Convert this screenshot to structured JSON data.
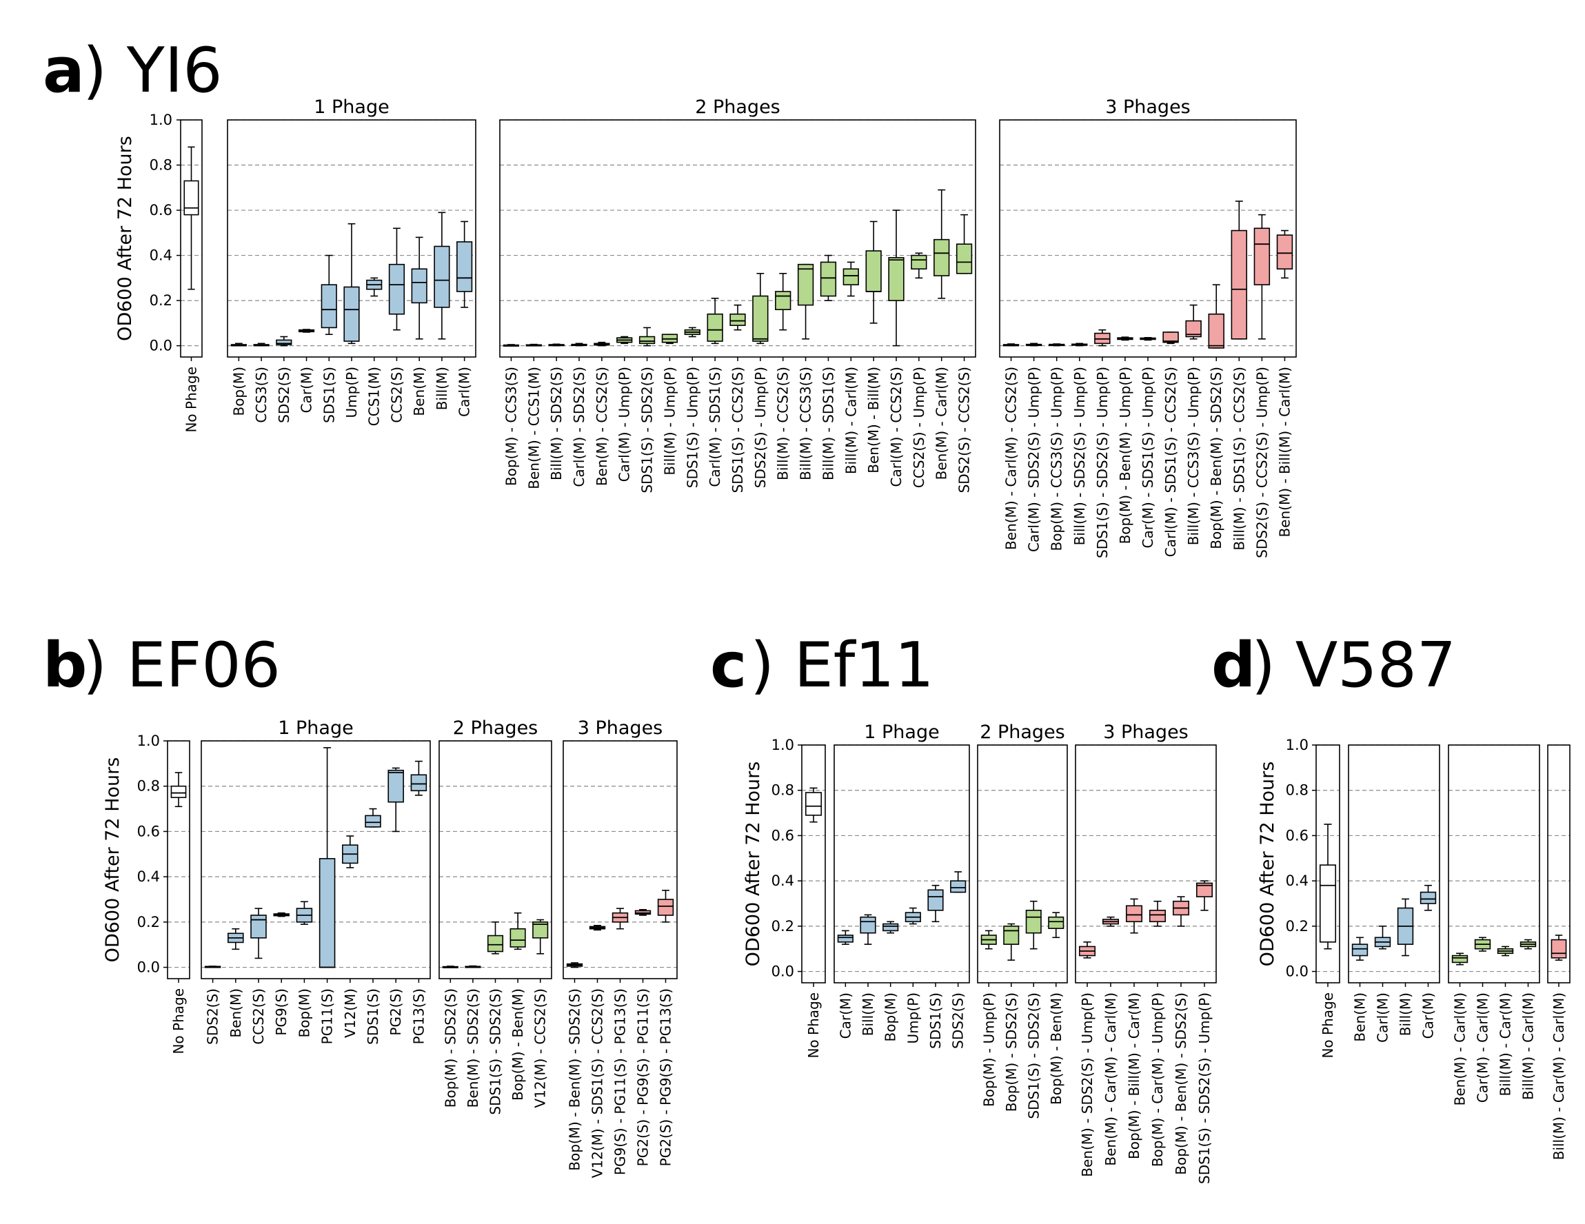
{
  "colors": {
    "none": "#ffffff",
    "1": "#a8c8de",
    "2": "#b4d88e",
    "3": "#f1a4a4"
  },
  "chart_data": [
    {
      "type": "box",
      "panel_letter": "a",
      "panel_name": "YI6",
      "ylabel": "OD600 After 72 Hours",
      "ylim": [
        -0.05,
        1.0
      ],
      "yticks": [
        "0.0",
        "0.2",
        "0.4",
        "0.6",
        "0.8",
        "1.0"
      ],
      "grid": "y-dashed",
      "groups": [
        {
          "title": "",
          "color_key": "none",
          "categories": [
            "No Phage"
          ],
          "boxes": [
            [
              0.25,
              0.58,
              0.61,
              0.73,
              0.88
            ]
          ]
        },
        {
          "title": "1 Phage",
          "color_key": "1",
          "categories": [
            "Bop(M)",
            "CCS3(S)",
            "SDS2(S)",
            "Car(M)",
            "SDS1(S)",
            "Ump(P)",
            "CCS1(M)",
            "CCS2(S)",
            "Ben(M)",
            "Bill(M)",
            "Carl(M)"
          ],
          "boxes": [
            [
              0,
              0,
              0,
              0.005,
              0.01
            ],
            [
              0,
              0,
              0.003,
              0.005,
              0.01
            ],
            [
              0,
              0.005,
              0.01,
              0.025,
              0.04
            ],
            [
              0.06,
              0.062,
              0.066,
              0.07,
              0.072
            ],
            [
              0.05,
              0.08,
              0.16,
              0.27,
              0.4
            ],
            [
              0.01,
              0.02,
              0.16,
              0.26,
              0.54
            ],
            [
              0.22,
              0.25,
              0.27,
              0.29,
              0.3
            ],
            [
              0.07,
              0.14,
              0.27,
              0.36,
              0.52
            ],
            [
              0.03,
              0.19,
              0.28,
              0.34,
              0.48
            ],
            [
              0.03,
              0.17,
              0.29,
              0.44,
              0.59
            ],
            [
              0.17,
              0.24,
              0.3,
              0.46,
              0.55
            ]
          ]
        },
        {
          "title": "2 Phages",
          "color_key": "2",
          "categories": [
            "Bop(M) - CCS3(S)",
            "Ben(M) - CCS1(M)",
            "Bill(M) - SDS2(S)",
            "Carl(M) - SDS2(S)",
            "Ben(M) - CCS2(S)",
            "Carl(M) - Ump(P)",
            "SDS1(S) - SDS2(S)",
            "Bill(M) - Ump(P)",
            "SDS1(S) - Ump(P)",
            "Carl(M) - SDS1(S)",
            "SDS1(S) - CCS2(S)",
            "SDS2(S) - Ump(P)",
            "Bill(M) - CCS2(S)",
            "Bill(M) - CCS3(S)",
            "Bill(M) - SDS1(S)",
            "Bill(M) - Carl(M)",
            "Ben(M) - Bill(M)",
            "Carl(M) - CCS2(S)",
            "CCS2(S) - Ump(P)",
            "Ben(M) - Carl(M)",
            "SDS2(S) - CCS2(S)"
          ],
          "boxes": [
            [
              0,
              0,
              0,
              0.003,
              0.005
            ],
            [
              0,
              0,
              0.002,
              0.004,
              0.006
            ],
            [
              0,
              0.001,
              0.003,
              0.005,
              0.007
            ],
            [
              0,
              0.001,
              0.003,
              0.006,
              0.01
            ],
            [
              0,
              0.003,
              0.006,
              0.01,
              0.015
            ],
            [
              0.01,
              0.015,
              0.025,
              0.035,
              0.04
            ],
            [
              0,
              0.01,
              0.02,
              0.04,
              0.08
            ],
            [
              0.01,
              0.015,
              0.03,
              0.05,
              0.05
            ],
            [
              0.04,
              0.05,
              0.06,
              0.07,
              0.08
            ],
            [
              0.01,
              0.02,
              0.07,
              0.14,
              0.21
            ],
            [
              0.07,
              0.09,
              0.11,
              0.14,
              0.18
            ],
            [
              0.01,
              0.02,
              0.03,
              0.22,
              0.32
            ],
            [
              0.07,
              0.16,
              0.22,
              0.24,
              0.32
            ],
            [
              0.03,
              0.18,
              0.34,
              0.36,
              0.36
            ],
            [
              0.2,
              0.22,
              0.3,
              0.37,
              0.4
            ],
            [
              0.22,
              0.27,
              0.31,
              0.34,
              0.37
            ],
            [
              0.1,
              0.24,
              0.24,
              0.42,
              0.55
            ],
            [
              0,
              0.2,
              0.38,
              0.39,
              0.6
            ],
            [
              0.3,
              0.34,
              0.38,
              0.4,
              0.41
            ],
            [
              0.21,
              0.31,
              0.41,
              0.47,
              0.69
            ],
            [
              0.32,
              0.32,
              0.37,
              0.45,
              0.58
            ]
          ]
        },
        {
          "title": "3 Phages",
          "color_key": "3",
          "categories": [
            "Ben(M) - Carl(M) - CCS2(S)",
            "Carl(M) - SDS2(S) - Ump(P)",
            "Bop(M) - CCS3(S) - Ump(P)",
            "Bill(M) - SDS2(S) - Ump(P)",
            "SDS1(S) - SDS2(S) - Ump(P)",
            "Bop(M) - Ben(M) - Ump(P)",
            "Car(M) - SDS1(S) - Ump(P)",
            "Carl(M) - SDS1(S) - CCS2(S)",
            "Bill(M) - CCS3(S) - Ump(P)",
            "Bop(M) - Ben(M) - SDS2(S)",
            "Bill(M) - SDS1(S) - CCS2(S)",
            "SDS2(S) - CCS2(S) - Ump(P)",
            "Ben(M) - Bill(M) - Carl(M)"
          ],
          "boxes": [
            [
              0,
              0,
              0.002,
              0.005,
              0.008
            ],
            [
              0,
              0.001,
              0.003,
              0.006,
              0.01
            ],
            [
              0,
              0.001,
              0.003,
              0.006,
              0.008
            ],
            [
              0,
              0.002,
              0.004,
              0.007,
              0.01
            ],
            [
              0,
              0.01,
              0.03,
              0.055,
              0.07
            ],
            [
              0.025,
              0.028,
              0.032,
              0.035,
              0.038
            ],
            [
              0.025,
              0.028,
              0.031,
              0.034,
              0.036
            ],
            [
              0.01,
              0.015,
              0.02,
              0.06,
              0.06
            ],
            [
              0.03,
              0.04,
              0.05,
              0.11,
              0.18
            ],
            [
              -0.01,
              -0.01,
              0.0,
              0.14,
              0.27
            ],
            [
              0.03,
              0.03,
              0.25,
              0.51,
              0.64
            ],
            [
              0.03,
              0.27,
              0.45,
              0.52,
              0.58
            ],
            [
              0.3,
              0.34,
              0.41,
              0.49,
              0.51
            ]
          ]
        }
      ]
    },
    {
      "type": "box",
      "panel_letter": "b",
      "panel_name": "EF06",
      "ylabel": "OD600 After 72 Hours",
      "ylim": [
        -0.05,
        1.0
      ],
      "yticks": [
        "0.0",
        "0.2",
        "0.4",
        "0.6",
        "0.8",
        "1.0"
      ],
      "grid": "y-dashed",
      "groups": [
        {
          "title": "",
          "color_key": "none",
          "categories": [
            "No Phage"
          ],
          "boxes": [
            [
              0.71,
              0.75,
              0.77,
              0.8,
              0.86
            ]
          ]
        },
        {
          "title": "1 Phage",
          "color_key": "1",
          "categories": [
            "SDS2(S)",
            "Ben(M)",
            "CCS2(S)",
            "PG9(S)",
            "Bop(M)",
            "PG11(S)",
            "V12(M)",
            "SDS1(S)",
            "PG2(S)",
            "PG13(S)"
          ],
          "boxes": [
            [
              0,
              0,
              0.002,
              0.004,
              0.005
            ],
            [
              0.08,
              0.11,
              0.13,
              0.15,
              0.17
            ],
            [
              0.04,
              0.13,
              0.21,
              0.23,
              0.26
            ],
            [
              0.225,
              0.228,
              0.232,
              0.236,
              0.24
            ],
            [
              0.19,
              0.2,
              0.23,
              0.26,
              0.29
            ],
            [
              0,
              0,
              0,
              0.48,
              0.97
            ],
            [
              0.44,
              0.46,
              0.5,
              0.54,
              0.58
            ],
            [
              0.62,
              0.62,
              0.64,
              0.67,
              0.7
            ],
            [
              0.6,
              0.73,
              0.86,
              0.87,
              0.88
            ],
            [
              0.76,
              0.78,
              0.81,
              0.85,
              0.91
            ]
          ]
        },
        {
          "title": "2 Phages",
          "color_key": "2",
          "categories": [
            "Bop(M) - SDS2(S)",
            "Ben(M) - SDS2(S)",
            "SDS1(S) - SDS2(S)",
            "Bop(M) - Ben(M)",
            "V12(M) - CCS2(S)"
          ],
          "boxes": [
            [
              0,
              0,
              0.002,
              0.003,
              0.005
            ],
            [
              0,
              0,
              0.002,
              0.004,
              0.006
            ],
            [
              0.06,
              0.07,
              0.1,
              0.14,
              0.2
            ],
            [
              0.08,
              0.09,
              0.12,
              0.17,
              0.24
            ],
            [
              0.06,
              0.13,
              0.19,
              0.2,
              0.21
            ]
          ]
        },
        {
          "title": "3 Phages",
          "color_key": "3",
          "categories": [
            "Bop(M) - Ben(M) - SDS2(S)",
            "V12(M) - SDS1(S) - CCS2(S)",
            "PG9(S) - PG11(S) - PG13(S)",
            "PG2(S) - PG9(S) - PG11(S)",
            "PG2(S) - PG9(S) - PG13(S)"
          ],
          "boxes": [
            [
              0,
              0.005,
              0.01,
              0.015,
              0.02
            ],
            [
              0.165,
              0.17,
              0.175,
              0.18,
              0.185
            ],
            [
              0.17,
              0.2,
              0.22,
              0.24,
              0.26
            ],
            [
              0.23,
              0.235,
              0.24,
              0.25,
              0.255
            ],
            [
              0.2,
              0.23,
              0.27,
              0.3,
              0.34
            ]
          ]
        }
      ]
    },
    {
      "type": "box",
      "panel_letter": "c",
      "panel_name": "Ef11",
      "ylabel": "OD600 After 72 Hours",
      "ylim": [
        -0.05,
        1.0
      ],
      "yticks": [
        "0.0",
        "0.2",
        "0.4",
        "0.6",
        "0.8",
        "1.0"
      ],
      "grid": "y-dashed",
      "groups": [
        {
          "title": "",
          "color_key": "none",
          "categories": [
            "No Phage"
          ],
          "boxes": [
            [
              0.66,
              0.69,
              0.73,
              0.79,
              0.81
            ]
          ]
        },
        {
          "title": "1 Phage",
          "color_key": "1",
          "categories": [
            "Car(M)",
            "Bill(M)",
            "Bop(M)",
            "Ump(P)",
            "SDS1(S)",
            "SDS2(S)"
          ],
          "boxes": [
            [
              0.12,
              0.13,
              0.15,
              0.16,
              0.18
            ],
            [
              0.12,
              0.17,
              0.22,
              0.24,
              0.25
            ],
            [
              0.17,
              0.18,
              0.2,
              0.21,
              0.22
            ],
            [
              0.21,
              0.22,
              0.24,
              0.26,
              0.28
            ],
            [
              0.22,
              0.27,
              0.33,
              0.36,
              0.38
            ],
            [
              0.35,
              0.35,
              0.37,
              0.4,
              0.44
            ]
          ]
        },
        {
          "title": "2 Phages",
          "color_key": "2",
          "categories": [
            "Bop(M) - Ump(P)",
            "Bop(M) - SDS2(S)",
            "SDS1(S) - SDS2(S)",
            "Bop(M) - Ben(M)"
          ],
          "boxes": [
            [
              0.1,
              0.12,
              0.14,
              0.16,
              0.18
            ],
            [
              0.05,
              0.12,
              0.18,
              0.2,
              0.21
            ],
            [
              0.1,
              0.17,
              0.24,
              0.27,
              0.31
            ],
            [
              0.15,
              0.19,
              0.22,
              0.24,
              0.26
            ]
          ]
        },
        {
          "title": "3 Phages",
          "color_key": "3",
          "categories": [
            "Ben(M) - SDS2(S) - Ump(P)",
            "Ben(M) - Car(M) - Carl(M)",
            "Bop(M) - Bill(M) - Car(M)",
            "Bop(M) - Car(M) - Ump(P)",
            "Bop(M) - Ben(M) - SDS2(S)",
            "SDS1(S) - SDS2(S) - Ump(P)"
          ],
          "boxes": [
            [
              0.06,
              0.07,
              0.09,
              0.11,
              0.13
            ],
            [
              0.2,
              0.21,
              0.22,
              0.23,
              0.24
            ],
            [
              0.17,
              0.22,
              0.25,
              0.29,
              0.32
            ],
            [
              0.2,
              0.22,
              0.25,
              0.27,
              0.31
            ],
            [
              0.2,
              0.25,
              0.28,
              0.31,
              0.33
            ],
            [
              0.27,
              0.33,
              0.38,
              0.39,
              0.4
            ]
          ]
        }
      ]
    },
    {
      "type": "box",
      "panel_letter": "d",
      "panel_name": "V587",
      "ylabel": "OD600 After 72 Hours",
      "ylim": [
        -0.05,
        1.0
      ],
      "yticks": [
        "0.0",
        "0.2",
        "0.4",
        "0.6",
        "0.8",
        "1.0"
      ],
      "grid": "y-dashed",
      "groups": [
        {
          "title": "",
          "color_key": "none",
          "categories": [
            "No Phage"
          ],
          "boxes": [
            [
              0.1,
              0.13,
              0.38,
              0.47,
              0.65
            ]
          ]
        },
        {
          "title": "",
          "color_key": "1",
          "categories": [
            "Ben(M)",
            "Carl(M)",
            "Bill(M)",
            "Car(M)"
          ],
          "boxes": [
            [
              0.05,
              0.07,
              0.1,
              0.12,
              0.15
            ],
            [
              0.1,
              0.11,
              0.13,
              0.15,
              0.2
            ],
            [
              0.07,
              0.12,
              0.2,
              0.28,
              0.32
            ],
            [
              0.27,
              0.3,
              0.32,
              0.35,
              0.38
            ]
          ]
        },
        {
          "title": "",
          "color_key": "2",
          "categories": [
            "Ben(M) - Carl(M)",
            "Car(M) - Carl(M)",
            "Bill(M) - Car(M)",
            "Bill(M) - Carl(M)"
          ],
          "boxes": [
            [
              0.03,
              0.04,
              0.06,
              0.07,
              0.08
            ],
            [
              0.09,
              0.1,
              0.12,
              0.14,
              0.15
            ],
            [
              0.07,
              0.08,
              0.09,
              0.1,
              0.11
            ],
            [
              0.1,
              0.11,
              0.12,
              0.13,
              0.14
            ]
          ]
        },
        {
          "title": "",
          "color_key": "3",
          "categories": [
            "Bill(M) - Car(M) - Carl(M)"
          ],
          "boxes": [
            [
              0.05,
              0.06,
              0.08,
              0.14,
              0.16
            ]
          ]
        }
      ]
    }
  ]
}
